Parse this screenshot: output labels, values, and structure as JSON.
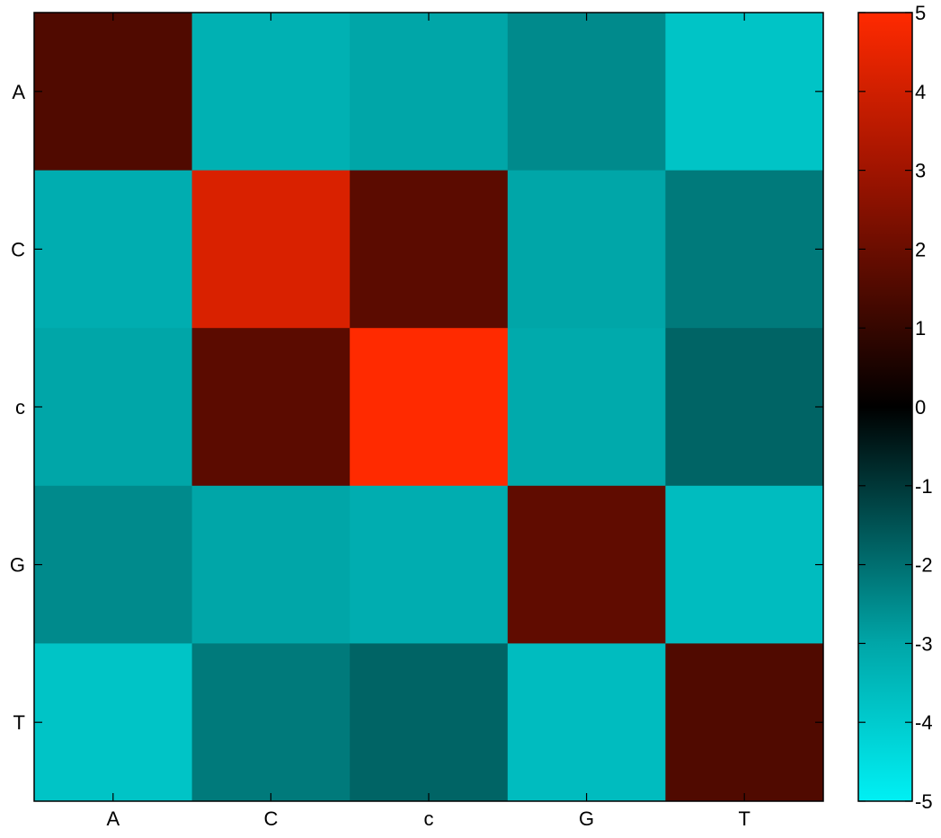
{
  "chart_data": {
    "type": "heatmap",
    "x_categories": [
      "A",
      "C",
      "c",
      "G",
      "T"
    ],
    "y_categories": [
      "A",
      "C",
      "c",
      "G",
      "T"
    ],
    "values": [
      [
        1.5,
        -3.3,
        -3.0,
        -2.5,
        -3.8
      ],
      [
        -3.2,
        4.2,
        1.7,
        -3.0,
        -2.2
      ],
      [
        -3.0,
        1.7,
        5.0,
        -3.1,
        -1.8
      ],
      [
        -2.5,
        -3.0,
        -3.2,
        1.8,
        -3.6
      ],
      [
        -3.8,
        -2.2,
        -1.8,
        -3.6,
        1.5
      ]
    ],
    "colorbar": {
      "range": [
        -5,
        5
      ],
      "ticks": [
        5,
        4,
        3,
        2,
        1,
        0,
        -1,
        -2,
        -3,
        -4,
        -5
      ],
      "tick_labels": [
        "5",
        "4",
        "3",
        "2",
        "1",
        "0",
        "-1",
        "-2",
        "-3",
        "-4",
        "-5"
      ],
      "colormap": [
        {
          "v": -5,
          "color": "#00f0f4"
        },
        {
          "v": -3,
          "color": "#00a6a8"
        },
        {
          "v": 0,
          "color": "#000000"
        },
        {
          "v": 3,
          "color": "#a01400"
        },
        {
          "v": 5,
          "color": "#ff2a00"
        }
      ]
    },
    "title": "",
    "xlabel": "",
    "ylabel": "",
    "grid": false
  }
}
